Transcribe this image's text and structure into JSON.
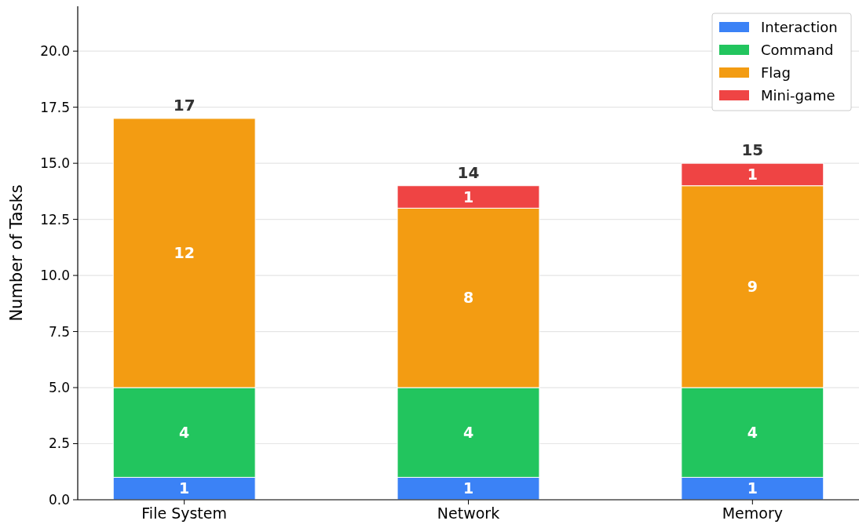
{
  "chart_data": {
    "type": "bar",
    "stacked": true,
    "ylabel": "Number of Tasks",
    "categories": [
      "File System",
      "Network",
      "Memory"
    ],
    "series": [
      {
        "name": "Interaction",
        "color": "#3b82f6",
        "values": [
          1,
          1,
          1
        ]
      },
      {
        "name": "Command",
        "color": "#22c55e",
        "values": [
          4,
          4,
          4
        ]
      },
      {
        "name": "Flag",
        "color": "#f39c12",
        "values": [
          12,
          8,
          9
        ]
      },
      {
        "name": "Mini-game",
        "color": "#ef4444",
        "values": [
          null,
          1,
          1
        ]
      }
    ],
    "data_labels": true,
    "totals": [
      "17",
      "14",
      "15"
    ],
    "ylim": [
      0,
      22
    ],
    "yticks": [
      {
        "value": 0,
        "label": "0.0"
      },
      2.5,
      {
        "value": 5,
        "label": "5.0"
      },
      7.5,
      {
        "value": 10,
        "label": "10.0"
      },
      12.5,
      {
        "value": 15,
        "label": "15.0"
      },
      17.5,
      {
        "value": 20,
        "label": "20.0"
      }
    ],
    "grid": "y",
    "legend": "top right"
  }
}
